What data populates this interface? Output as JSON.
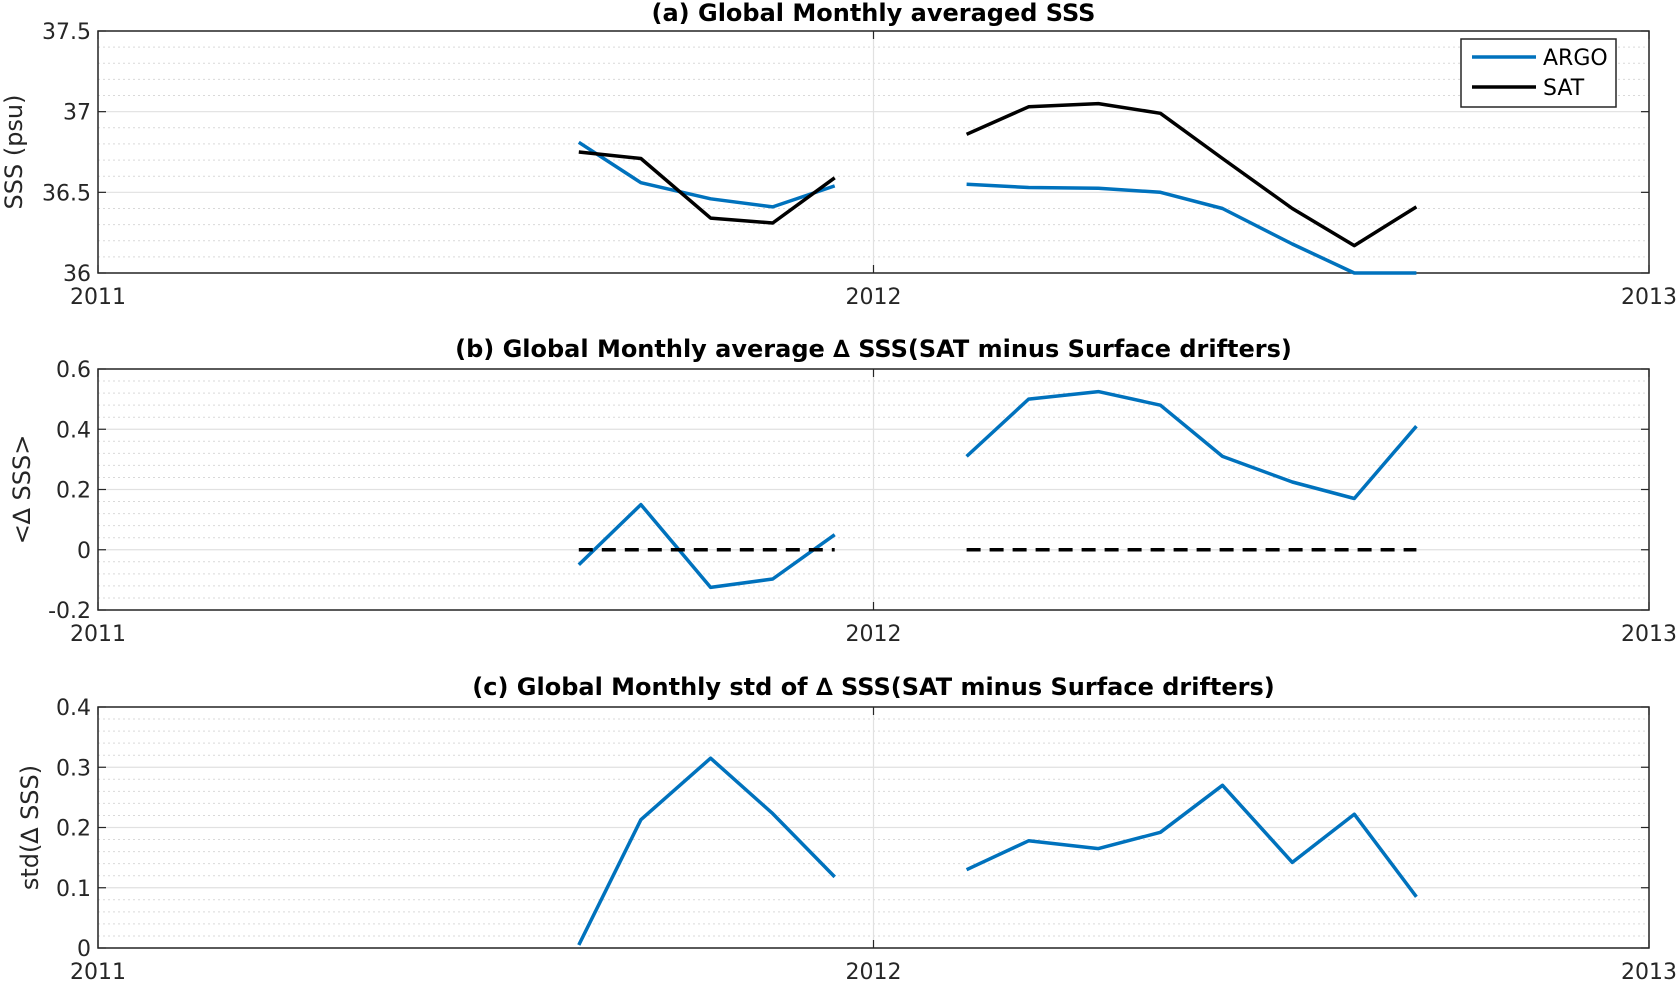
{
  "chart_data": [
    {
      "type": "line",
      "title": "(a) Global Monthly averaged SSS",
      "xlabel": "",
      "ylabel": "SSS (psu)",
      "xlim": [
        "2011",
        "2013"
      ],
      "ylim": [
        36,
        37.5
      ],
      "xticks": [
        "2011",
        "2012",
        "2013"
      ],
      "yticks": [
        "36",
        "36.5",
        "37",
        "37.5"
      ],
      "grid": true,
      "legend": "top-right",
      "x_unit": "year",
      "series": [
        {
          "name": "ARGO",
          "color": "#0072BD",
          "segments": [
            {
              "x": [
                2011.62,
                2011.7,
                2011.79,
                2011.87,
                2011.95
              ],
              "y": [
                36.81,
                36.56,
                36.46,
                36.41,
                36.54
              ]
            },
            {
              "x": [
                2012.12,
                2012.2,
                2012.29,
                2012.37,
                2012.45,
                2012.54,
                2012.62,
                2012.7
              ],
              "y": [
                36.55,
                36.53,
                36.525,
                36.5,
                36.4,
                36.18,
                36.0,
                36.0
              ]
            }
          ]
        },
        {
          "name": "SAT",
          "color": "#000000",
          "segments": [
            {
              "x": [
                2011.62,
                2011.7,
                2011.79,
                2011.87,
                2011.95
              ],
              "y": [
                36.75,
                36.71,
                36.34,
                36.31,
                36.59
              ]
            },
            {
              "x": [
                2012.12,
                2012.2,
                2012.29,
                2012.37,
                2012.45,
                2012.54,
                2012.62,
                2012.7
              ],
              "y": [
                36.86,
                37.03,
                37.05,
                36.99,
                36.71,
                36.4,
                36.17,
                36.41
              ]
            }
          ]
        }
      ]
    },
    {
      "type": "line",
      "title": "(b) Global Monthly average ∆ SSS(SAT minus Surface drifters)",
      "xlabel": "",
      "ylabel": "<∆ SSS>",
      "xlim": [
        "2011",
        "2013"
      ],
      "ylim": [
        -0.2,
        0.6
      ],
      "xticks": [
        "2011",
        "2012",
        "2013"
      ],
      "yticks": [
        "-0.2",
        "0",
        "0.2",
        "0.4",
        "0.6"
      ],
      "grid": true,
      "x_unit": "year",
      "series": [
        {
          "color": "#0072BD",
          "segments": [
            {
              "x": [
                2011.62,
                2011.7,
                2011.79,
                2011.87,
                2011.95
              ],
              "y": [
                -0.05,
                0.15,
                -0.125,
                -0.097,
                0.05
              ]
            },
            {
              "x": [
                2012.12,
                2012.2,
                2012.29,
                2012.37,
                2012.45,
                2012.54,
                2012.62,
                2012.7
              ],
              "y": [
                0.31,
                0.5,
                0.525,
                0.48,
                0.31,
                0.225,
                0.17,
                0.41
              ]
            }
          ]
        },
        {
          "color": "#000000",
          "style": "dashed",
          "segments": [
            {
              "x": [
                2011.62,
                2011.95
              ],
              "y": [
                0,
                0
              ]
            },
            {
              "x": [
                2012.12,
                2012.7
              ],
              "y": [
                0,
                0
              ]
            }
          ]
        }
      ]
    },
    {
      "type": "line",
      "title": "(c) Global Monthly std of ∆ SSS(SAT minus Surface drifters)",
      "xlabel": "",
      "ylabel": "std(∆ SSS)",
      "xlim": [
        "2011",
        "2013"
      ],
      "ylim": [
        0,
        0.4
      ],
      "xticks": [
        "2011",
        "2012",
        "2013"
      ],
      "yticks": [
        "0",
        "0.1",
        "0.2",
        "0.3",
        "0.4"
      ],
      "grid": true,
      "x_unit": "year",
      "series": [
        {
          "color": "#0072BD",
          "segments": [
            {
              "x": [
                2011.62,
                2011.7,
                2011.79,
                2011.87,
                2011.95
              ],
              "y": [
                0.005,
                0.213,
                0.315,
                0.223,
                0.118
              ]
            },
            {
              "x": [
                2012.12,
                2012.2,
                2012.29,
                2012.37,
                2012.45,
                2012.54,
                2012.62,
                2012.7
              ],
              "y": [
                0.13,
                0.178,
                0.165,
                0.192,
                0.27,
                0.142,
                0.222,
                0.085
              ]
            }
          ]
        }
      ]
    }
  ]
}
